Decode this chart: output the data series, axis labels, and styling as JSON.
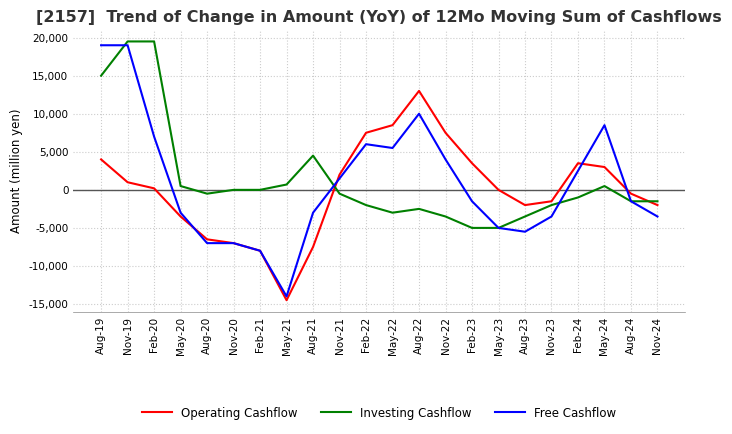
{
  "title": "[2157]  Trend of Change in Amount (YoY) of 12Mo Moving Sum of Cashflows",
  "ylabel": "Amount (million yen)",
  "ylim": [
    -16000,
    21000
  ],
  "yticks": [
    -15000,
    -10000,
    -5000,
    0,
    5000,
    10000,
    15000,
    20000
  ],
  "x_labels": [
    "Aug-19",
    "Nov-19",
    "Feb-20",
    "May-20",
    "Aug-20",
    "Nov-20",
    "Feb-21",
    "May-21",
    "Aug-21",
    "Nov-21",
    "Feb-22",
    "May-22",
    "Aug-22",
    "Nov-22",
    "Feb-23",
    "May-23",
    "Aug-23",
    "Nov-23",
    "Feb-24",
    "May-24",
    "Aug-24",
    "Nov-24"
  ],
  "operating": [
    4000,
    1000,
    200,
    -3500,
    -6500,
    -7000,
    -8000,
    -14500,
    -7500,
    2000,
    7500,
    8500,
    13000,
    7500,
    3500,
    0,
    -2000,
    -1500,
    3500,
    3000,
    -500,
    -2000
  ],
  "investing": [
    15000,
    19500,
    19500,
    500,
    -500,
    0,
    0,
    700,
    4500,
    -500,
    -2000,
    -3000,
    -2500,
    -3500,
    -5000,
    -5000,
    -3500,
    -2000,
    -1000,
    500,
    -1500,
    -1500
  ],
  "free": [
    19000,
    19000,
    7000,
    -3000,
    -7000,
    -7000,
    -8000,
    -14000,
    -3000,
    1500,
    6000,
    5500,
    10000,
    4000,
    -1500,
    -5000,
    -5500,
    -3500,
    2500,
    8500,
    -1500,
    -3500
  ],
  "op_color": "#ff0000",
  "inv_color": "#008000",
  "free_color": "#0000ff",
  "bg_color": "#ffffff",
  "grid_color": "#cccccc",
  "title_color": "#333333",
  "title_fontsize": 11.5,
  "tick_fontsize": 7.5,
  "label_fontsize": 8.5
}
